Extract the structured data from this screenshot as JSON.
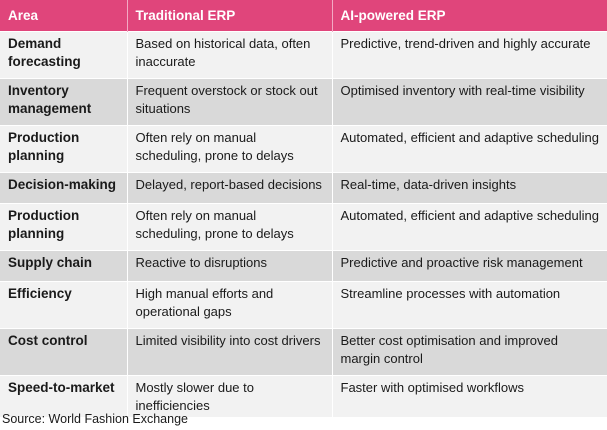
{
  "table": {
    "headers": [
      "Area",
      "Traditional ERP",
      "AI-powered ERP"
    ],
    "rows": [
      {
        "area": "Demand forecasting",
        "traditional": "Based on historical data, often inaccurate",
        "ai": "Predictive, trend-driven and highly accurate"
      },
      {
        "area": "Inventory management",
        "traditional": "Frequent overstock or stock out situations",
        "ai": "Optimised inventory with real-time visibility"
      },
      {
        "area": "Production planning",
        "traditional": "Often rely on manual scheduling, prone to delays",
        "ai": "Automated, efficient and adaptive scheduling"
      },
      {
        "area": "Decision-making",
        "traditional": "Delayed, report-based decisions",
        "ai": "Real-time, data-driven insights"
      },
      {
        "area": "Production planning",
        "traditional": "Often rely on manual scheduling, prone to delays",
        "ai": "Automated, efficient and adaptive scheduling"
      },
      {
        "area": "Supply chain",
        "traditional": "Reactive to disruptions",
        "ai": "Predictive and proactive risk management"
      },
      {
        "area": "Efficiency",
        "traditional": "High manual efforts and operational gaps",
        "ai": "Streamline processes with automation"
      },
      {
        "area": "Cost control",
        "traditional": "Limited visibility into cost drivers",
        "ai": "Better cost optimisation and improved margin control"
      },
      {
        "area": "Speed-to-market",
        "traditional": "Mostly slower due to inefficiencies",
        "ai": "Faster with optimised workflows"
      }
    ]
  },
  "source": "Source: World Fashion Exchange",
  "colors": {
    "header_bg": "#e0457b",
    "row_light": "#f2f2f2",
    "row_dark": "#d9d9d9"
  }
}
